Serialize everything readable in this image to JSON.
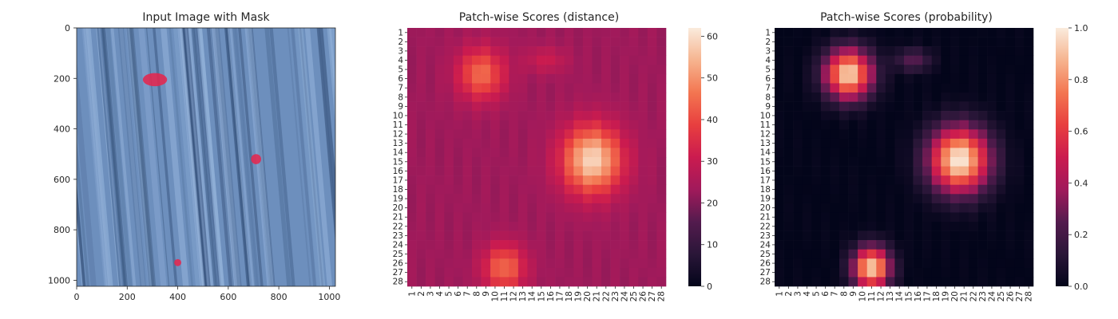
{
  "chart_data": [
    {
      "type": "image",
      "title": "Input Image with Mask",
      "x_ticks": [
        0,
        200,
        400,
        600,
        800,
        1000
      ],
      "y_ticks": [
        0,
        200,
        400,
        600,
        800,
        1000
      ],
      "xlim": [
        0,
        1024
      ],
      "ylim": [
        1024,
        0
      ],
      "image_colors": {
        "base": "#6d8fbd",
        "light": "#9dbbe2",
        "dark": "#344f78",
        "mask": "#e8234b"
      },
      "mask_regions": [
        {
          "cx": 310,
          "cy": 205,
          "rx": 48,
          "ry": 26
        },
        {
          "cx": 710,
          "cy": 520,
          "rx": 20,
          "ry": 20
        },
        {
          "cx": 400,
          "cy": 930,
          "rx": 14,
          "ry": 14
        }
      ]
    },
    {
      "type": "heatmap",
      "title": "Patch-wise Scores (distance)",
      "rows": 28,
      "cols": 28,
      "tick_labels": [
        "1",
        "2",
        "3",
        "4",
        "5",
        "6",
        "7",
        "8",
        "9",
        "10",
        "11",
        "12",
        "13",
        "14",
        "15",
        "16",
        "17",
        "18",
        "19",
        "20",
        "21",
        "22",
        "23",
        "24",
        "25",
        "26",
        "27",
        "28"
      ],
      "colorbar_ticks": [
        0,
        10,
        20,
        30,
        40,
        50,
        60
      ],
      "vmin": 0,
      "vmax": 62,
      "colormap": "rocket",
      "base": 23,
      "blobs": [
        {
          "r": 5.5,
          "c": 8.5,
          "a": 22,
          "sr": 2.0,
          "sc": 1.8
        },
        {
          "r": 14.8,
          "c": 20.5,
          "a": 36,
          "sr": 2.6,
          "sc": 2.3
        },
        {
          "r": 26.5,
          "c": 11.0,
          "a": 22,
          "sr": 1.8,
          "sc": 1.6
        },
        {
          "r": 4.0,
          "c": 15.5,
          "a": 8,
          "sr": 1.0,
          "sc": 1.6
        }
      ]
    },
    {
      "type": "heatmap",
      "title": "Patch-wise Scores (probability)",
      "rows": 28,
      "cols": 28,
      "tick_labels": [
        "1",
        "2",
        "3",
        "4",
        "5",
        "6",
        "7",
        "8",
        "9",
        "10",
        "11",
        "12",
        "13",
        "14",
        "15",
        "16",
        "17",
        "18",
        "19",
        "20",
        "21",
        "22",
        "23",
        "24",
        "25",
        "26",
        "27",
        "28"
      ],
      "colorbar_ticks": [
        0.0,
        0.2,
        0.4,
        0.6,
        0.8,
        1.0
      ],
      "colorbar_tick_labels": [
        "0.0",
        "0.2",
        "0.4",
        "0.6",
        "0.8",
        "1.0"
      ],
      "vmin": 0,
      "vmax": 1,
      "colormap": "rocket",
      "base": 0,
      "blobs": [
        {
          "r": 5.5,
          "c": 8.5,
          "a": 0.95,
          "sr": 1.9,
          "sc": 1.8
        },
        {
          "r": 14.8,
          "c": 20.5,
          "a": 1.0,
          "sr": 2.5,
          "sc": 2.3
        },
        {
          "r": 26.5,
          "c": 11.0,
          "a": 0.95,
          "sr": 1.6,
          "sc": 1.4
        },
        {
          "r": 4.0,
          "c": 15.5,
          "a": 0.25,
          "sr": 0.9,
          "sc": 1.4
        }
      ]
    }
  ]
}
